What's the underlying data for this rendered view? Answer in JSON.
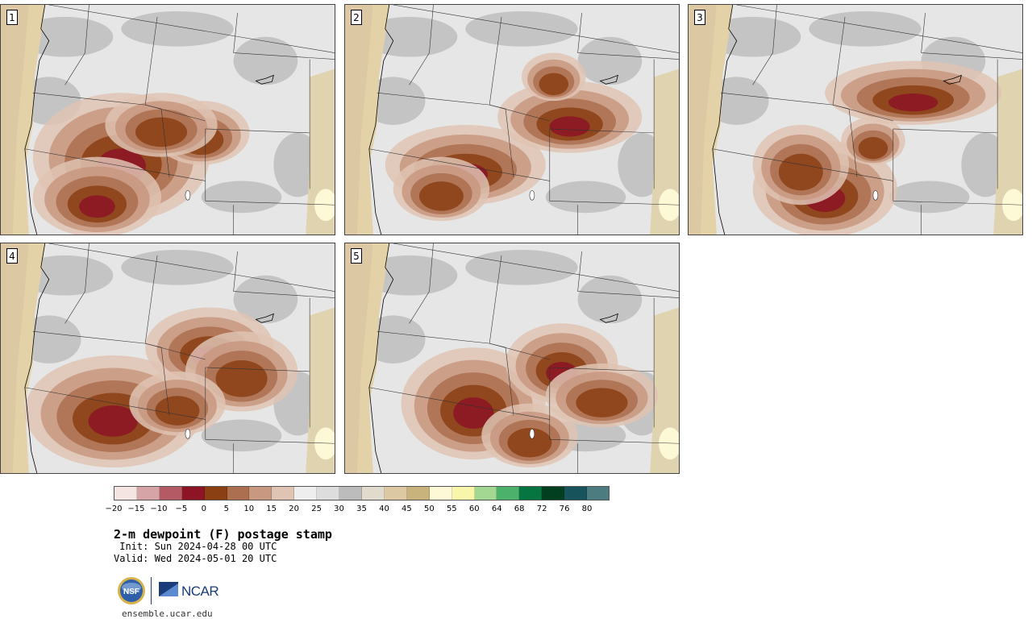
{
  "panels": [
    {
      "label": "1"
    },
    {
      "label": "2"
    },
    {
      "label": "3"
    },
    {
      "label": "4"
    },
    {
      "label": "5"
    }
  ],
  "colorbar": {
    "colors": [
      "#f4e4e2",
      "#d6a3a7",
      "#b45a64",
      "#8c1425",
      "#8b4014",
      "#ac6f4f",
      "#c89880",
      "#dfc3b3",
      "#eeeeee",
      "#dddddd",
      "#bcbcbc",
      "#e0dbcd",
      "#dcc9a4",
      "#c9b37c",
      "#fdf9d7",
      "#f8f6aa",
      "#a3d892",
      "#4cb16a",
      "#067540",
      "#023f20",
      "#16535a",
      "#4d7c80"
    ],
    "tick_labels": [
      "−20",
      "−15",
      "−10",
      "−5",
      "0",
      "5",
      "10",
      "15",
      "20",
      "25",
      "30",
      "35",
      "40",
      "45",
      "50",
      "55",
      "60",
      "64",
      "68",
      "72",
      "76",
      "80"
    ]
  },
  "title": "2-m dewpoint (F) postage stamp",
  "init": " Init: Sun 2024-04-28 00 UTC",
  "valid": "Valid: Wed 2024-05-01 20 UTC",
  "logos": {
    "nsf": "NSF",
    "ncar": "NCAR"
  },
  "website": "ensemble.ucar.edu"
}
